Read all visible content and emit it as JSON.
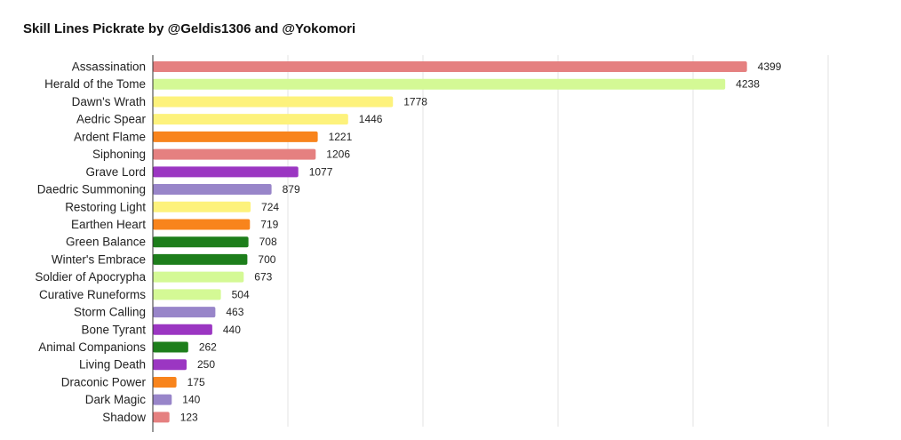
{
  "chart_data": {
    "type": "bar",
    "orientation": "horizontal",
    "title": "Skill Lines Pickrate by @Geldis1306 and @Yokomori",
    "xlabel": "",
    "ylabel": "",
    "xlim": [
      0,
      5000
    ],
    "grid": true,
    "legend": "none",
    "colors": {
      "pink": "#e58080",
      "lime": "#d4f995",
      "yellow": "#fdf27c",
      "orange": "#f8841c",
      "purple": "#9b36c2",
      "lavender": "#9885c9",
      "green": "#1d7e1b"
    },
    "categories": [
      "Assassination",
      "Herald of the Tome",
      "Dawn's Wrath",
      "Aedric Spear",
      "Ardent Flame",
      "Siphoning",
      "Grave Lord",
      "Daedric Summoning",
      "Restoring Light",
      "Earthen Heart",
      "Green Balance",
      "Winter's Embrace",
      "Soldier of Apocrypha",
      "Curative Runeforms",
      "Storm Calling",
      "Bone Tyrant",
      "Animal Companions",
      "Living Death",
      "Draconic Power",
      "Dark Magic",
      "Shadow"
    ],
    "values": [
      4399,
      4238,
      1778,
      1446,
      1221,
      1206,
      1077,
      879,
      724,
      719,
      708,
      700,
      673,
      504,
      463,
      440,
      262,
      250,
      175,
      140,
      123
    ],
    "bar_colors": [
      "#e58080",
      "#d4f995",
      "#fdf27c",
      "#fdf27c",
      "#f8841c",
      "#e58080",
      "#9b36c2",
      "#9885c9",
      "#fdf27c",
      "#f8841c",
      "#1d7e1b",
      "#1d7e1b",
      "#d4f995",
      "#d4f995",
      "#9885c9",
      "#9b36c2",
      "#1d7e1b",
      "#9b36c2",
      "#f8841c",
      "#9885c9",
      "#e58080"
    ]
  }
}
